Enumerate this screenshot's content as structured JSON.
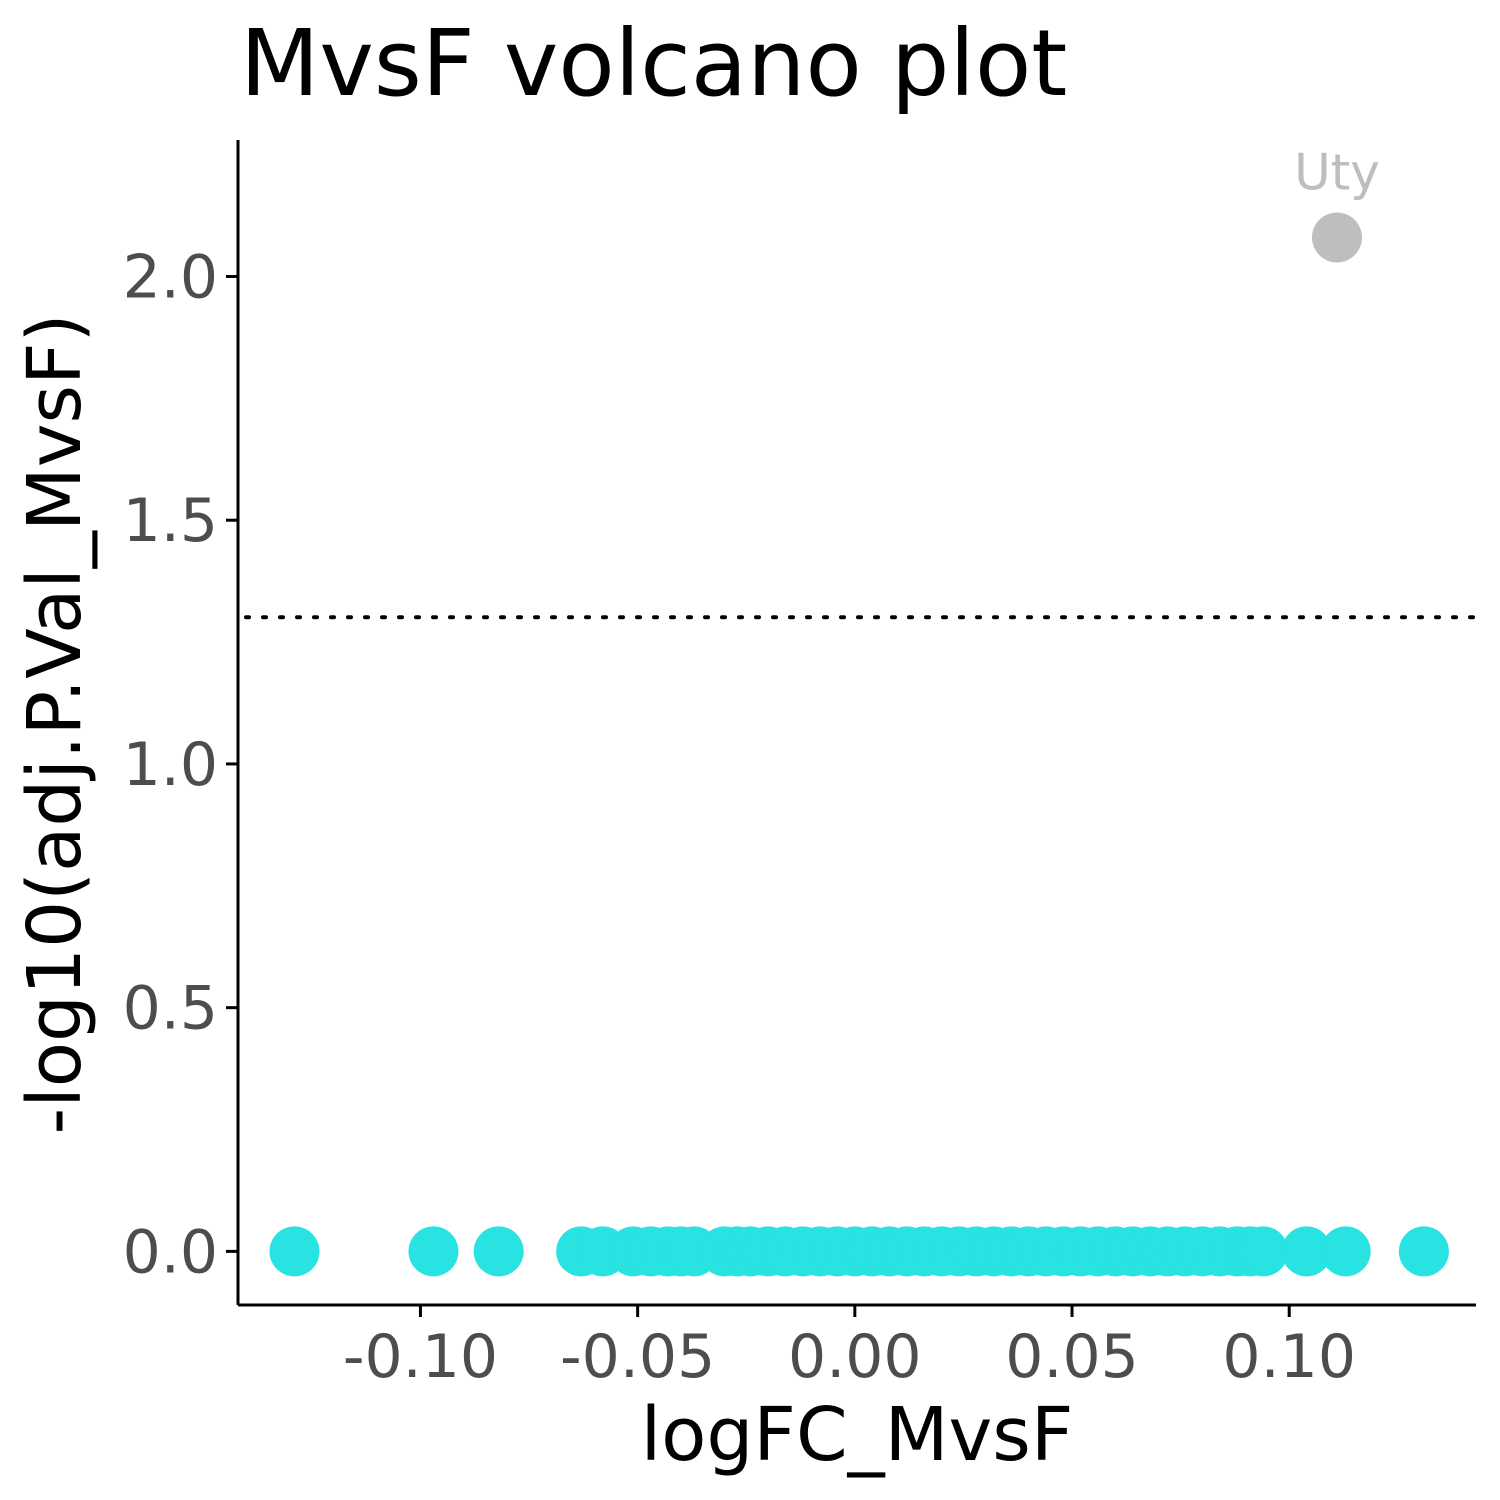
{
  "chart_data": {
    "type": "scatter",
    "title": "MvsF volcano plot",
    "xlabel": "logFC_MvsF",
    "ylabel": "-log10(adj.P.Val_MvsF)",
    "xlim": [
      -0.142,
      0.143
    ],
    "ylim": [
      -0.11,
      2.28
    ],
    "xticks": [
      -0.1,
      -0.05,
      0.0,
      0.05,
      0.1
    ],
    "xtick_labels": [
      "-0.10",
      "-0.05",
      "0.00",
      "0.05",
      "0.10"
    ],
    "yticks": [
      0.0,
      0.5,
      1.0,
      1.5,
      2.0
    ],
    "ytick_labels": [
      "0.0",
      "0.5",
      "1.0",
      "1.5",
      "2.0"
    ],
    "threshold_y": 1.301,
    "grid": false,
    "colors": {
      "not_significant": "#29e2e2",
      "highlighted": "#bebebe",
      "threshold": "#000000"
    },
    "series": [
      {
        "group": "not_significant",
        "color": "#29e2e2",
        "points": [
          {
            "x": -0.129,
            "y": 0.0
          },
          {
            "x": -0.097,
            "y": 0.0
          },
          {
            "x": -0.082,
            "y": 0.0
          },
          {
            "x": -0.063,
            "y": 0.0
          },
          {
            "x": -0.058,
            "y": 0.0
          },
          {
            "x": -0.051,
            "y": 0.0
          },
          {
            "x": -0.047,
            "y": 0.0
          },
          {
            "x": -0.043,
            "y": 0.0
          },
          {
            "x": -0.04,
            "y": 0.0
          },
          {
            "x": -0.037,
            "y": 0.0
          },
          {
            "x": -0.03,
            "y": 0.0
          },
          {
            "x": -0.027,
            "y": 0.0
          },
          {
            "x": -0.024,
            "y": 0.0
          },
          {
            "x": -0.02,
            "y": 0.0
          },
          {
            "x": -0.016,
            "y": 0.0
          },
          {
            "x": -0.012,
            "y": 0.0
          },
          {
            "x": -0.008,
            "y": 0.0
          },
          {
            "x": -0.004,
            "y": 0.0
          },
          {
            "x": 0.0,
            "y": 0.0
          },
          {
            "x": 0.004,
            "y": 0.0
          },
          {
            "x": 0.008,
            "y": 0.0
          },
          {
            "x": 0.012,
            "y": 0.0
          },
          {
            "x": 0.016,
            "y": 0.0
          },
          {
            "x": 0.02,
            "y": 0.0
          },
          {
            "x": 0.024,
            "y": 0.0
          },
          {
            "x": 0.028,
            "y": 0.0
          },
          {
            "x": 0.032,
            "y": 0.0
          },
          {
            "x": 0.036,
            "y": 0.0
          },
          {
            "x": 0.04,
            "y": 0.0
          },
          {
            "x": 0.044,
            "y": 0.0
          },
          {
            "x": 0.048,
            "y": 0.0
          },
          {
            "x": 0.052,
            "y": 0.0
          },
          {
            "x": 0.056,
            "y": 0.0
          },
          {
            "x": 0.06,
            "y": 0.0
          },
          {
            "x": 0.064,
            "y": 0.0
          },
          {
            "x": 0.068,
            "y": 0.0
          },
          {
            "x": 0.072,
            "y": 0.0
          },
          {
            "x": 0.076,
            "y": 0.0
          },
          {
            "x": 0.08,
            "y": 0.0
          },
          {
            "x": 0.084,
            "y": 0.0
          },
          {
            "x": 0.088,
            "y": 0.0
          },
          {
            "x": 0.091,
            "y": 0.0
          },
          {
            "x": 0.094,
            "y": 0.0
          },
          {
            "x": 0.104,
            "y": 0.0
          },
          {
            "x": 0.113,
            "y": 0.0
          },
          {
            "x": 0.131,
            "y": 0.0
          }
        ]
      },
      {
        "group": "highlighted",
        "color": "#bebebe",
        "points": [
          {
            "x": 0.111,
            "y": 2.08,
            "label": "Uty"
          }
        ]
      }
    ]
  }
}
